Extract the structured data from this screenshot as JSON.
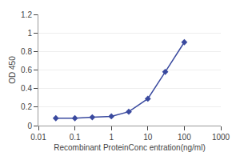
{
  "chart_data": {
    "type": "line",
    "xlabel": "Recombinant ProteinConc entration(ng/ml)",
    "ylabel": "OD 450",
    "x": [
      0.03,
      0.1,
      0.3,
      1.0,
      3.0,
      10.0,
      30.0,
      100.0
    ],
    "values": [
      0.08,
      0.08,
      0.09,
      0.1,
      0.15,
      0.29,
      0.58,
      0.9
    ],
    "color": "#3a4a9f",
    "marker": "diamond",
    "log": "x",
    "xlim": [
      0.01,
      1000
    ],
    "xticks": [
      0.01,
      0.1,
      1,
      10,
      100,
      1000
    ],
    "ylim": [
      0,
      1.2
    ],
    "yticks": [
      0,
      0.2,
      0.4,
      0.6,
      0.8,
      1,
      1.2
    ],
    "grid": "y"
  }
}
